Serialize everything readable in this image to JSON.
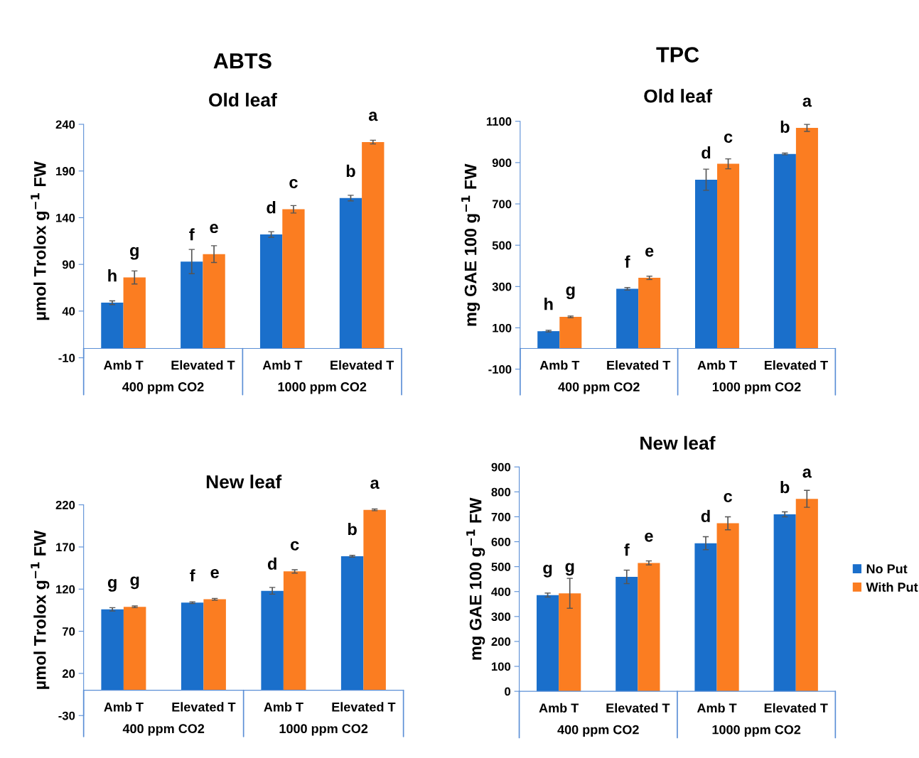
{
  "chart_data": [
    {
      "type": "bar",
      "title": "ABTS",
      "subtitle": "Old leaf",
      "ylabel": "µmol Trolox g$^{−1}$ FW",
      "categories": [
        "Amb T",
        "Elevated T",
        "Amb T",
        "Elevated T"
      ],
      "annotations": [
        "400 ppm CO2",
        "1000 ppm CO2"
      ],
      "ylim": [
        -10,
        240
      ],
      "yticks": [
        -10,
        40,
        90,
        140,
        190,
        240
      ],
      "grid": false,
      "legend": false,
      "series": [
        {
          "color": "#1a6fcb",
          "values": [
            49,
            93,
            122,
            161
          ],
          "errors": [
            2,
            13,
            3,
            3
          ],
          "value_labels": [
            "h",
            "f",
            "d",
            "b"
          ]
        },
        {
          "color": "#fb7d21",
          "values": [
            76,
            101,
            149,
            221
          ],
          "errors": [
            7,
            9,
            4,
            2
          ],
          "value_labels": [
            "g",
            "e",
            "c",
            "a"
          ]
        }
      ]
    },
    {
      "type": "bar",
      "title": "TPC",
      "subtitle": "Old leaf",
      "ylabel": "mg GAE 100 g$^{−1}$ FW",
      "categories": [
        "Amb T",
        "Elevated T",
        "Amb T",
        "Elevated T"
      ],
      "annotations": [
        "400 ppm CO2",
        "1000 ppm CO2"
      ],
      "ylim": [
        -100,
        1100
      ],
      "yticks": [
        -100,
        100,
        300,
        500,
        700,
        900,
        1100
      ],
      "grid": false,
      "legend": false,
      "series": [
        {
          "color": "#1a6fcb",
          "values": [
            84,
            289,
            817,
            942
          ],
          "errors": [
            4,
            6,
            51,
            4
          ],
          "value_labels": [
            "h",
            "f",
            "d",
            "b"
          ]
        },
        {
          "color": "#fb7d21",
          "values": [
            153,
            342,
            894,
            1068
          ],
          "errors": [
            4,
            8,
            24,
            17
          ],
          "value_labels": [
            "g",
            "e",
            "c",
            "a"
          ]
        }
      ]
    },
    {
      "type": "bar",
      "title": "New leaf",
      "ylabel": "µmol Trolox g$^{−1}$ FW",
      "categories": [
        "Amb T",
        "Elevated T",
        "Amb T",
        "Elevated T"
      ],
      "annotations": [
        "400 ppm CO2",
        "1000 ppm CO2"
      ],
      "ylim": [
        -30,
        220
      ],
      "yticks": [
        -30,
        20,
        70,
        120,
        170,
        220
      ],
      "grid": false,
      "legend": false,
      "series": [
        {
          "color": "#1a6fcb",
          "values": [
            96,
            104,
            118,
            159
          ],
          "errors": [
            2,
            1,
            4,
            1
          ],
          "value_labels": [
            "g",
            "f",
            "d",
            "b"
          ]
        },
        {
          "color": "#fb7d21",
          "values": [
            99,
            108,
            141,
            214
          ],
          "errors": [
            1,
            1,
            2,
            1
          ],
          "value_labels": [
            "g",
            "e",
            "c",
            "a"
          ]
        }
      ]
    },
    {
      "type": "bar",
      "title": "New leaf",
      "ylabel": "mg GAE 100 g$^{−1}$ FW",
      "categories": [
        "Amb T",
        "Elevated T",
        "Amb T",
        "Elevated T"
      ],
      "annotations": [
        "400 ppm CO2",
        "1000 ppm CO2"
      ],
      "ylim": [
        0,
        900
      ],
      "yticks": [
        0,
        100,
        200,
        300,
        400,
        500,
        600,
        700,
        800,
        900
      ],
      "grid": false,
      "legend": "right",
      "series": [
        {
          "name": "No Put",
          "color": "#1a6fcb",
          "values": [
            386,
            459,
            594,
            710
          ],
          "errors": [
            8,
            27,
            26,
            10
          ],
          "value_labels": [
            "g",
            "f",
            "d",
            "b"
          ]
        },
        {
          "name": "With Put",
          "color": "#fb7d21",
          "values": [
            393,
            515,
            674,
            772
          ],
          "errors": [
            60,
            8,
            26,
            34
          ],
          "value_labels": [
            "g",
            "e",
            "c",
            "a"
          ]
        }
      ]
    }
  ]
}
